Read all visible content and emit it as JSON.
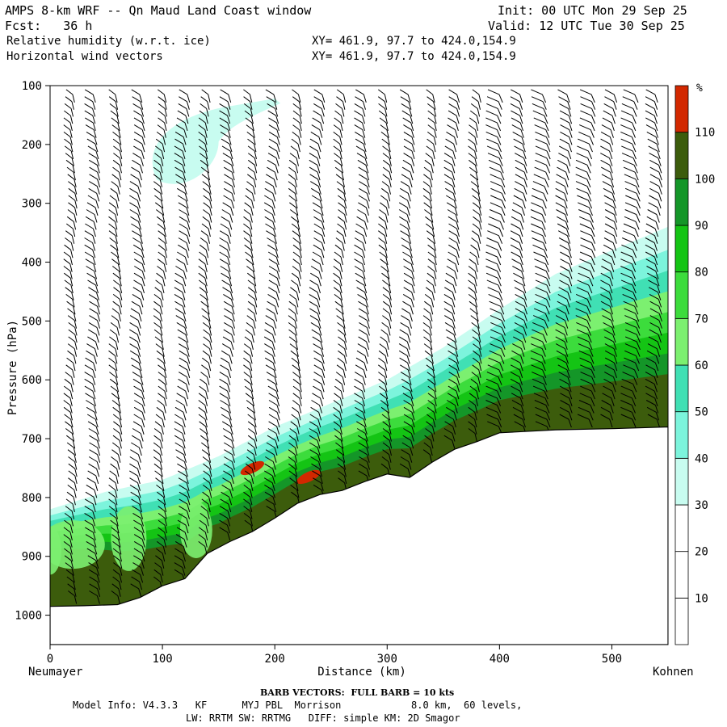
{
  "header": {
    "model_title": "AMPS 8-km WRF -- Qn Maud Land Coast window",
    "init": "Init: 00 UTC Mon 29 Sep 25",
    "fcst": "Fcst:   36 h",
    "valid": "Valid: 12 UTC Tue 30 Sep 25",
    "field1": "Relative humidity (w.r.t. ice)",
    "field1_xy": "XY= 461.9, 97.7 to 424.0,154.9",
    "field2": "Horizontal wind vectors",
    "field2_xy": "XY= 461.9, 97.7 to 424.0,154.9"
  },
  "footer": {
    "barb_note": "BARB VECTORS:  FULL BARB = 10 kts",
    "model_info": "Model Info: V4.3.3   KF      MYJ PBL  Morrison            8.0 km,  60 levels,",
    "physics": "LW: RRTM SW: RRTMG   DIFF: simple KM: 2D Smagor"
  },
  "colors": {
    "band_30_40": "#c8fcf0",
    "band_40_50": "#7cf4dc",
    "band_50_60": "#40e0b4",
    "band_60_70": "#7cf070",
    "band_70_80": "#3cdc3c",
    "band_80_90": "#14c414",
    "band_90_100": "#149628",
    "band_100_110": "#3c5c0c",
    "band_110_plus": "#d22800",
    "terrain": "#ffffff"
  },
  "chart_data": {
    "type": "vertical cross-section (filled contour + wind barbs)",
    "title": "Relative humidity (w.r.t. ice) and horizontal wind vectors",
    "xlabel": "Distance (km)",
    "ylabel": "Pressure (hPa)",
    "xlim": [
      0,
      550
    ],
    "ylim_hpa": [
      1050,
      100
    ],
    "x_ticks": [
      0,
      100,
      200,
      300,
      400,
      500
    ],
    "y_ticks": [
      100,
      200,
      300,
      400,
      500,
      600,
      700,
      800,
      900,
      1000
    ],
    "left_endpoint": "Neumayer",
    "right_endpoint": "Kohnen",
    "colorbar": {
      "unit": "%",
      "levels": [
        10,
        20,
        30,
        40,
        50,
        60,
        70,
        80,
        90,
        100,
        110
      ]
    },
    "terrain_surface_hpa": {
      "x": [
        0,
        30,
        60,
        80,
        100,
        120,
        140,
        160,
        180,
        200,
        220,
        240,
        260,
        280,
        300,
        320,
        340,
        360,
        380,
        400,
        450,
        500,
        550
      ],
      "p": [
        985,
        984,
        982,
        970,
        950,
        938,
        895,
        875,
        858,
        835,
        810,
        795,
        788,
        773,
        760,
        766,
        740,
        718,
        705,
        690,
        685,
        683,
        680
      ]
    },
    "moist_layer_top_30pct_hpa": {
      "x": [
        0,
        50,
        100,
        150,
        200,
        250,
        300,
        350,
        400,
        450,
        500,
        550
      ],
      "p": [
        820,
        790,
        770,
        730,
        680,
        640,
        600,
        545,
        480,
        420,
        380,
        340
      ]
    },
    "upper_cloud_patch": {
      "x_range": [
        80,
        200
      ],
      "p_range": [
        120,
        280
      ],
      "rh_band": "30-40"
    },
    "rh_max_spots": [
      {
        "x": 180,
        "p": 750,
        "rh_band": ">110"
      },
      {
        "x": 230,
        "p": 765,
        "rh_band": ">110"
      }
    ],
    "barb_columns_km": [
      20,
      40,
      60,
      80,
      100,
      120,
      140,
      160,
      180,
      200,
      220,
      240,
      260,
      280,
      300,
      320,
      340,
      360,
      380,
      400,
      420,
      440,
      460,
      480,
      500,
      520,
      540
    ]
  }
}
